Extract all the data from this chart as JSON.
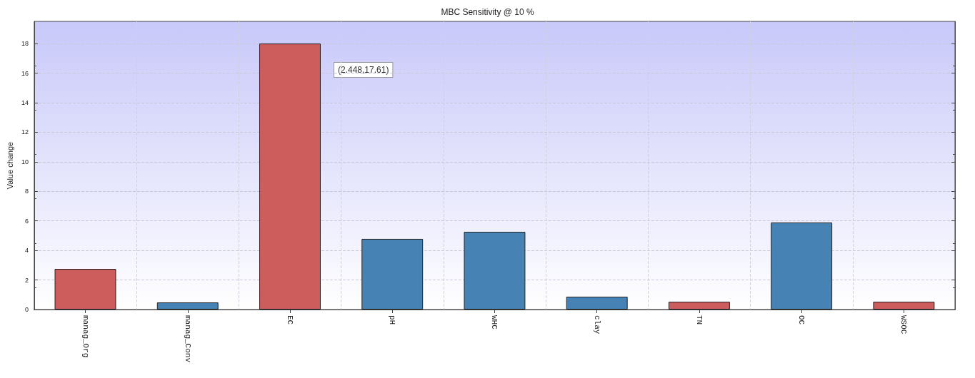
{
  "chart_data": {
    "type": "bar",
    "title": "MBC Sensitivity @ 10 %",
    "ylabel": "Value change",
    "categories": [
      "manag_Org",
      "manag_Conv",
      "EC",
      "pH",
      "WHC",
      "clay",
      "TN",
      "OC",
      "WSOC"
    ],
    "values": [
      2.75,
      0.48,
      18.0,
      4.78,
      5.26,
      0.87,
      0.53,
      5.89,
      0.53
    ],
    "colors": [
      "#cd5c5c",
      "#4682b4",
      "#cd5c5c",
      "#4682b4",
      "#4682b4",
      "#4682b4",
      "#cd5c5c",
      "#4682b4",
      "#cd5c5c"
    ],
    "ylim": [
      0,
      19.5
    ],
    "yticks": [
      0,
      2,
      4,
      6,
      8,
      10,
      12,
      14,
      16,
      18
    ],
    "grid": true,
    "annotations": [
      "(2.448,17.61)"
    ]
  }
}
